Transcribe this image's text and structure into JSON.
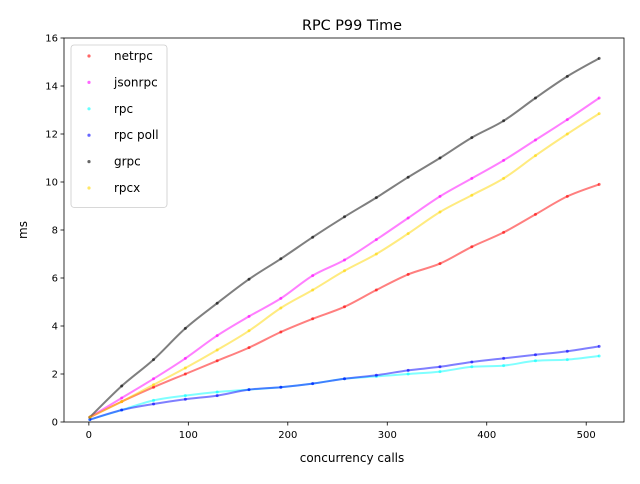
{
  "chart_data": {
    "type": "line",
    "title": "RPC P99 Time",
    "xlabel": "concurrency calls",
    "ylabel": "ms",
    "xlim": [
      -25,
      538
    ],
    "ylim": [
      0,
      16
    ],
    "xticks": [
      0,
      100,
      200,
      300,
      400,
      500
    ],
    "yticks": [
      0,
      2,
      4,
      6,
      8,
      10,
      12,
      14,
      16
    ],
    "grid": false,
    "legend_position": "top-left",
    "x": [
      1,
      33,
      65,
      97,
      129,
      161,
      193,
      225,
      257,
      289,
      321,
      353,
      385,
      417,
      449,
      481,
      513
    ],
    "series": [
      {
        "name": "netrpc",
        "color": "#ff0000",
        "values": [
          0.2,
          0.85,
          1.45,
          2.0,
          2.55,
          3.1,
          3.75,
          4.3,
          4.8,
          5.5,
          6.15,
          6.6,
          7.3,
          7.9,
          8.65,
          9.4,
          9.9
        ]
      },
      {
        "name": "jsonrpc",
        "color": "#ff00ff",
        "values": [
          0.2,
          1.0,
          1.8,
          2.65,
          3.6,
          4.4,
          5.15,
          6.1,
          6.75,
          7.6,
          8.5,
          9.4,
          10.15,
          10.9,
          11.75,
          12.6,
          13.5
        ]
      },
      {
        "name": "rpc",
        "color": "#00ffff",
        "values": [
          0.1,
          0.5,
          0.9,
          1.1,
          1.25,
          1.35,
          1.45,
          1.6,
          1.8,
          1.9,
          2.0,
          2.1,
          2.3,
          2.35,
          2.55,
          2.6,
          2.75
        ]
      },
      {
        "name": "rpc poll",
        "color": "#0000ff",
        "values": [
          0.1,
          0.5,
          0.75,
          0.95,
          1.1,
          1.35,
          1.45,
          1.6,
          1.8,
          1.95,
          2.15,
          2.3,
          2.5,
          2.65,
          2.8,
          2.95,
          3.15
        ]
      },
      {
        "name": "grpc",
        "color": "#000000",
        "values": [
          0.2,
          1.5,
          2.6,
          3.9,
          4.95,
          5.95,
          6.8,
          7.7,
          8.55,
          9.35,
          10.2,
          11.0,
          11.85,
          12.55,
          13.5,
          14.4,
          15.15
        ]
      },
      {
        "name": "rpcx",
        "color": "#ffd700",
        "values": [
          0.2,
          0.85,
          1.55,
          2.25,
          3.0,
          3.8,
          4.75,
          5.5,
          6.3,
          7.0,
          7.85,
          8.75,
          9.45,
          10.15,
          11.1,
          12.0,
          12.85
        ]
      }
    ]
  }
}
